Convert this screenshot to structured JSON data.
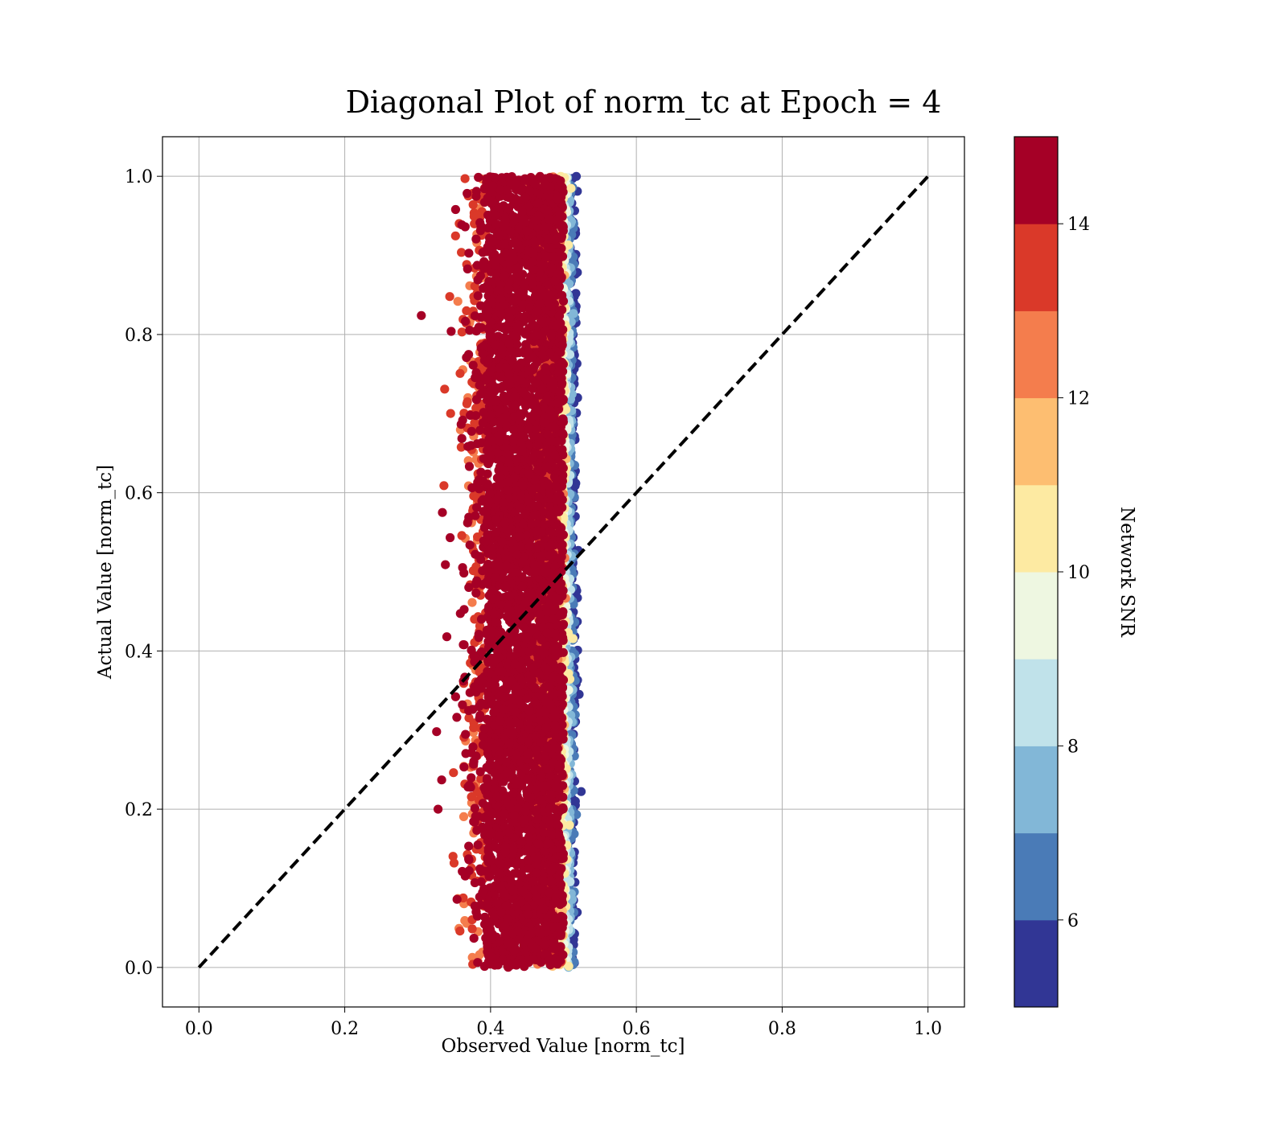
{
  "chart_data": {
    "type": "scatter",
    "title": "Diagonal Plot of norm_tc at Epoch = 4",
    "xlabel": "Observed Value [norm_tc]",
    "ylabel": "Actual Value [norm_tc]",
    "xlim": [
      -0.05,
      1.05
    ],
    "ylim": [
      -0.05,
      1.05
    ],
    "xticks": [
      0.0,
      0.2,
      0.4,
      0.6,
      0.8,
      1.0
    ],
    "yticks": [
      0.0,
      0.2,
      0.4,
      0.6,
      0.8,
      1.0
    ],
    "xtick_labels": [
      "0.0",
      "0.2",
      "0.4",
      "0.6",
      "0.8",
      "1.0"
    ],
    "ytick_labels": [
      "0.0",
      "0.2",
      "0.4",
      "0.6",
      "0.8",
      "1.0"
    ],
    "grid": true,
    "reference_line": {
      "style": "dashed",
      "color": "#000000",
      "from": [
        0.0,
        0.0
      ],
      "to": [
        1.0,
        1.0
      ]
    },
    "scatter_description": {
      "observed_range": [
        0.3,
        0.525
      ],
      "observed_core_range": [
        0.395,
        0.505
      ],
      "actual_range": [
        0.0,
        1.0
      ],
      "low_snr_observed_edge": 0.515
    },
    "sample_points": [
      {
        "x": 0.305,
        "y": 0.824,
        "snr": 15
      },
      {
        "x": 0.337,
        "y": 0.731,
        "snr": 13
      },
      {
        "x": 0.336,
        "y": 0.609,
        "snr": 13
      },
      {
        "x": 0.334,
        "y": 0.575,
        "snr": 15
      },
      {
        "x": 0.338,
        "y": 0.509,
        "snr": 15
      },
      {
        "x": 0.326,
        "y": 0.298,
        "snr": 15
      },
      {
        "x": 0.328,
        "y": 0.2,
        "snr": 15
      },
      {
        "x": 0.333,
        "y": 0.237,
        "snr": 15
      },
      {
        "x": 0.34,
        "y": 0.418,
        "snr": 15
      },
      {
        "x": 0.344,
        "y": 0.848,
        "snr": 13
      },
      {
        "x": 0.346,
        "y": 0.804,
        "snr": 15
      },
      {
        "x": 0.35,
        "y": 0.132,
        "snr": 13
      },
      {
        "x": 0.352,
        "y": 0.958,
        "snr": 15
      },
      {
        "x": 0.354,
        "y": 0.086,
        "snr": 15
      },
      {
        "x": 0.358,
        "y": 0.046,
        "snr": 13
      },
      {
        "x": 0.365,
        "y": 0.997,
        "snr": 13
      }
    ],
    "colorbar": {
      "label": "Network SNR",
      "range": [
        5,
        15
      ],
      "ticks": [
        6,
        8,
        10,
        12,
        14
      ],
      "tick_labels": [
        "6",
        "8",
        "10",
        "12",
        "14"
      ],
      "bins": [
        {
          "from": 5,
          "to": 6,
          "color": "#313695"
        },
        {
          "from": 6,
          "to": 7,
          "color": "#4a7bb7"
        },
        {
          "from": 7,
          "to": 8,
          "color": "#82b7d7"
        },
        {
          "from": 8,
          "to": 9,
          "color": "#c0e2ea"
        },
        {
          "from": 9,
          "to": 10,
          "color": "#eef7e1"
        },
        {
          "from": 10,
          "to": 11,
          "color": "#fdeaa2"
        },
        {
          "from": 11,
          "to": 12,
          "color": "#fdbe71"
        },
        {
          "from": 12,
          "to": 13,
          "color": "#f47d4d"
        },
        {
          "from": 13,
          "to": 14,
          "color": "#da3929"
        },
        {
          "from": 14,
          "to": 15,
          "color": "#a50026"
        }
      ]
    }
  }
}
